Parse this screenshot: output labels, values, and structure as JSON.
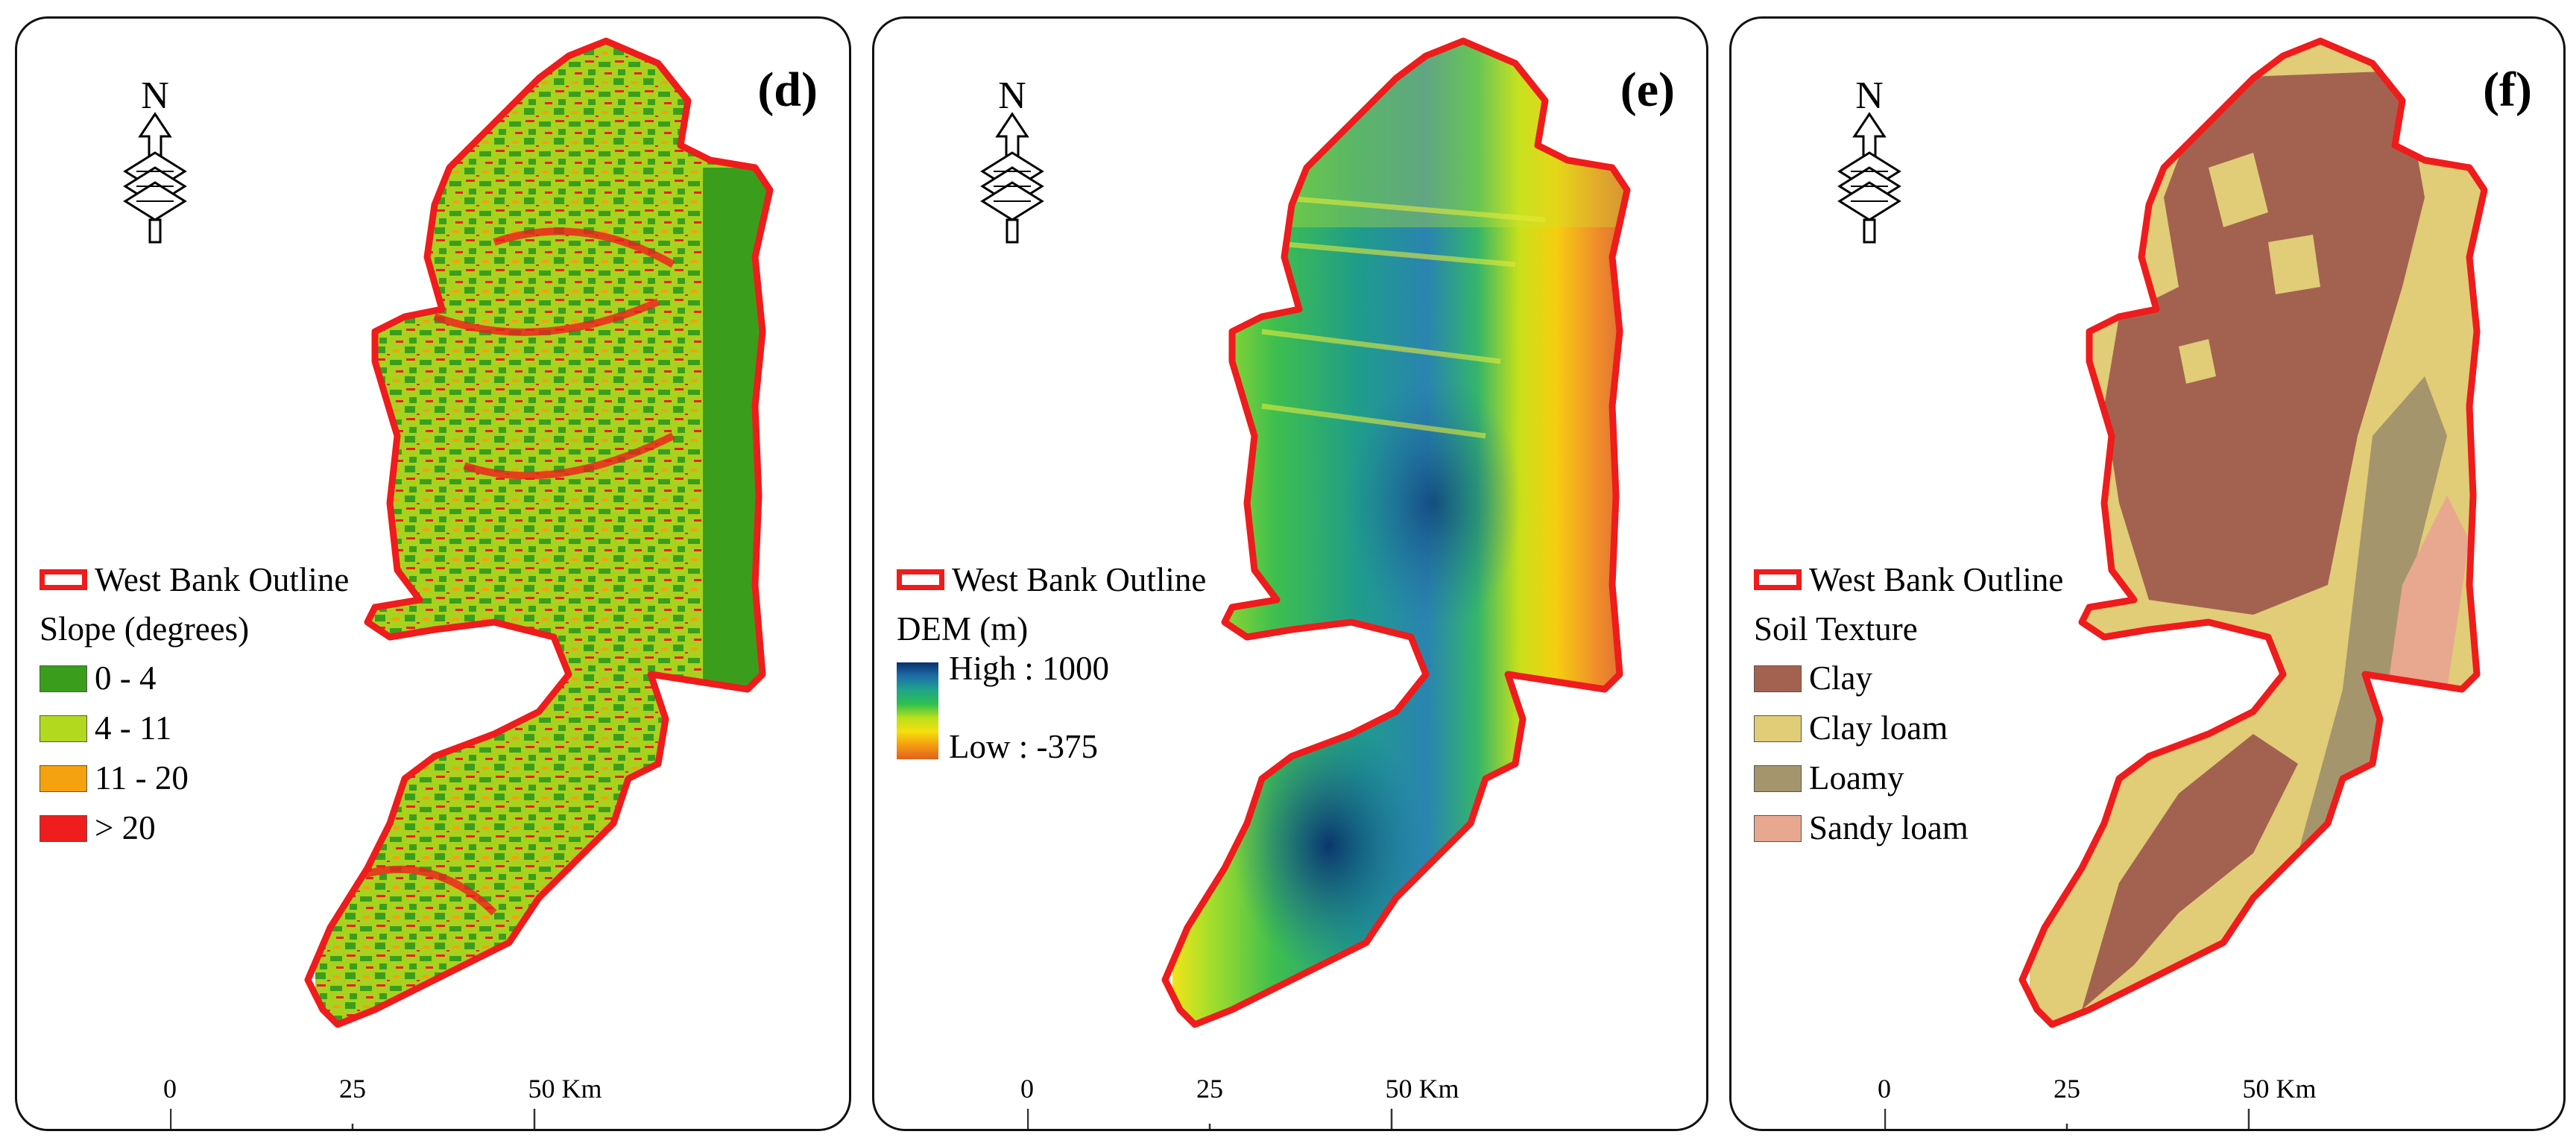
{
  "panels": [
    {
      "letter": "(d)",
      "outline_label": "West Bank Outline",
      "legend_title": "Slope (degrees)",
      "legend_items": [
        {
          "label": "0 - 4",
          "color": "#3a9e1c"
        },
        {
          "label": "4 - 11",
          "color": "#b3d91f"
        },
        {
          "label": "11 - 20",
          "color": "#f5a20f"
        },
        {
          "label": "> 20",
          "color": "#ef1d1d"
        }
      ],
      "scale": {
        "zero": "0",
        "mid": "25",
        "end": "50 Km"
      }
    },
    {
      "letter": "(e)",
      "outline_label": "West Bank Outline",
      "legend_title": "DEM (m)",
      "ramp_high": "High : 1000",
      "ramp_low": "Low : -375",
      "scale": {
        "zero": "0",
        "mid": "25",
        "end": "50 Km"
      }
    },
    {
      "letter": "(f)",
      "outline_label": "West Bank Outline",
      "legend_title": "Soil Texture",
      "legend_items": [
        {
          "label": "Clay",
          "color": "#a3624f"
        },
        {
          "label": "Clay loam",
          "color": "#e1cc77"
        },
        {
          "label": "Loamy",
          "color": "#a4956c"
        },
        {
          "label": "Sandy loam",
          "color": "#e8a88f"
        }
      ],
      "scale": {
        "zero": "0",
        "mid": "25",
        "end": "50 Km"
      }
    }
  ],
  "north_label": "N",
  "colors": {
    "outline": "#ee1c1c",
    "panel_border": "#111111"
  }
}
